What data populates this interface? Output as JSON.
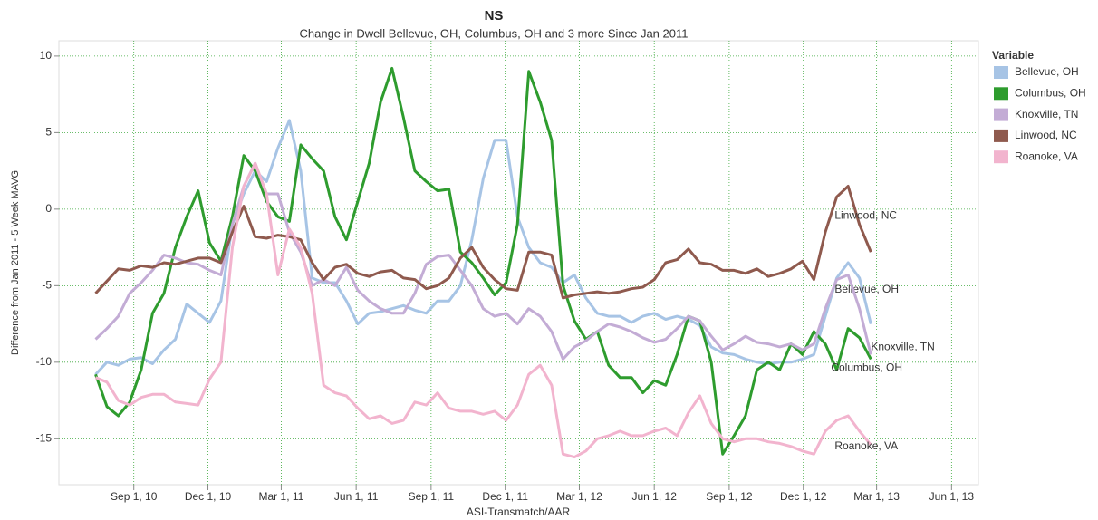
{
  "chart_data": {
    "type": "line",
    "title": "NS",
    "subtitle": "Change in Dwell Bellevue, OH, Columbus, OH and 3 more Since Jan 2011",
    "x_label": "ASI-Transmatch/AAR",
    "y_label": "Difference from Jan 2011 - 5 Week MAVG",
    "legend_title": "Variable",
    "legend": "right",
    "grid": true,
    "xlim": [
      "2010-06-01",
      "2013-07-04"
    ],
    "ylim": [
      -18,
      11
    ],
    "yticks": [
      -15,
      -10,
      -5,
      0,
      5,
      10
    ],
    "xticks": [
      {
        "value": "2010-09-01",
        "label": "Sep 1, 10"
      },
      {
        "value": "2010-12-01",
        "label": "Dec 1, 10"
      },
      {
        "value": "2011-03-01",
        "label": "Mar 1, 11"
      },
      {
        "value": "2011-06-01",
        "label": "Jun 1, 11"
      },
      {
        "value": "2011-09-01",
        "label": "Sep 1, 11"
      },
      {
        "value": "2011-12-01",
        "label": "Dec 1, 11"
      },
      {
        "value": "2012-03-01",
        "label": "Mar 1, 12"
      },
      {
        "value": "2012-06-01",
        "label": "Jun 1, 12"
      },
      {
        "value": "2012-09-01",
        "label": "Sep 1, 12"
      },
      {
        "value": "2012-12-01",
        "label": "Dec 1, 12"
      },
      {
        "value": "2013-03-01",
        "label": "Mar 1, 13"
      },
      {
        "value": "2013-06-01",
        "label": "Jun 1, 13"
      }
    ],
    "x": [
      "2010-07-16",
      "2010-07-30",
      "2010-08-13",
      "2010-08-27",
      "2010-09-10",
      "2010-09-24",
      "2010-10-08",
      "2010-10-22",
      "2010-11-05",
      "2010-11-19",
      "2010-12-03",
      "2010-12-17",
      "2010-12-31",
      "2011-01-14",
      "2011-01-28",
      "2011-02-11",
      "2011-02-25",
      "2011-03-11",
      "2011-03-25",
      "2011-04-08",
      "2011-04-22",
      "2011-05-06",
      "2011-05-20",
      "2011-06-03",
      "2011-06-17",
      "2011-07-01",
      "2011-07-15",
      "2011-07-29",
      "2011-08-12",
      "2011-08-26",
      "2011-09-09",
      "2011-09-23",
      "2011-10-07",
      "2011-10-21",
      "2011-11-04",
      "2011-11-18",
      "2011-12-02",
      "2011-12-16",
      "2011-12-30",
      "2012-01-13",
      "2012-01-27",
      "2012-02-10",
      "2012-02-24",
      "2012-03-09",
      "2012-03-23",
      "2012-04-06",
      "2012-04-20",
      "2012-05-04",
      "2012-05-18",
      "2012-06-01",
      "2012-06-15",
      "2012-06-29",
      "2012-07-13",
      "2012-07-27",
      "2012-08-10",
      "2012-08-24",
      "2012-09-07",
      "2012-09-21",
      "2012-10-05",
      "2012-10-19",
      "2012-11-02",
      "2012-11-16",
      "2012-11-30",
      "2012-12-14",
      "2012-12-28",
      "2013-01-11",
      "2013-01-25",
      "2013-02-08",
      "2013-02-22"
    ],
    "series": [
      {
        "name": "Bellevue, OH",
        "color": "#a7c4e5",
        "values": [
          -10.8,
          -10.0,
          -10.2,
          -9.8,
          -9.7,
          -10.1,
          -9.2,
          -8.5,
          -6.2,
          -6.8,
          -7.4,
          -6.0,
          -1.0,
          1.0,
          2.5,
          1.8,
          4.0,
          5.8,
          2.5,
          -4.5,
          -4.8,
          -4.8,
          -6.0,
          -7.5,
          -6.8,
          -6.7,
          -6.5,
          -6.3,
          -6.6,
          -6.8,
          -6.0,
          -6.0,
          -5.0,
          -2.0,
          2.0,
          4.5,
          4.5,
          -0.5,
          -2.5,
          -3.5,
          -3.8,
          -4.8,
          -4.3,
          -5.8,
          -6.8,
          -7.0,
          -7.0,
          -7.4,
          -7.0,
          -6.8,
          -7.2,
          -7.0,
          -7.2,
          -7.6,
          -9.0,
          -9.4,
          -9.5,
          -9.8,
          -10.0,
          -10.1,
          -10.0,
          -10.0,
          -9.8,
          -9.5,
          -7.0,
          -4.5,
          -3.5,
          -4.5,
          -7.5
        ]
      },
      {
        "name": "Columbus, OH",
        "color": "#2e9c2e",
        "values": [
          -10.8,
          -12.9,
          -13.5,
          -12.6,
          -10.5,
          -6.8,
          -5.5,
          -2.5,
          -0.5,
          1.2,
          -2.2,
          -3.4,
          -0.5,
          3.5,
          2.5,
          0.5,
          -0.5,
          -0.8,
          4.2,
          3.3,
          2.5,
          -0.5,
          -2.0,
          0.5,
          3.0,
          7.0,
          9.2,
          6.0,
          2.5,
          1.8,
          1.2,
          1.3,
          -2.8,
          -3.5,
          -4.5,
          -5.6,
          -4.8,
          -1.0,
          9.0,
          7.0,
          4.5,
          -5.0,
          -7.3,
          -8.5,
          -8.0,
          -10.2,
          -11.0,
          -11.0,
          -12.0,
          -11.2,
          -11.5,
          -9.5,
          -7.0,
          -7.3,
          -10.0,
          -16.0,
          -14.8,
          -13.5,
          -10.5,
          -10.0,
          -10.5,
          -8.8,
          -9.5,
          -8.0,
          -8.8,
          -10.5,
          -7.8,
          -8.4,
          -9.8
        ]
      },
      {
        "name": "Knoxville, TN",
        "color": "#c3acd5",
        "values": [
          -8.5,
          -7.8,
          -7.0,
          -5.5,
          -4.8,
          -4.0,
          -3.0,
          -3.2,
          -3.5,
          -3.6,
          -4.0,
          -4.3,
          -1.0,
          1.5,
          3.0,
          1.0,
          1.0,
          -1.5,
          -2.8,
          -5.0,
          -4.6,
          -5.0,
          -3.8,
          -5.3,
          -6.0,
          -6.5,
          -6.8,
          -6.8,
          -5.5,
          -3.6,
          -3.1,
          -3.0,
          -4.0,
          -5.0,
          -6.5,
          -7.0,
          -6.8,
          -7.5,
          -6.5,
          -7.0,
          -8.0,
          -9.8,
          -9.0,
          -8.6,
          -8.0,
          -7.5,
          -7.7,
          -8.0,
          -8.4,
          -8.7,
          -8.5,
          -7.8,
          -7.0,
          -7.3,
          -8.3,
          -9.2,
          -8.8,
          -8.3,
          -8.7,
          -8.8,
          -9.0,
          -8.8,
          -9.2,
          -8.8,
          -6.5,
          -4.6,
          -4.3,
          -6.5,
          -9.5
        ]
      },
      {
        "name": "Linwood, NC",
        "color": "#8f5a4e",
        "values": [
          -5.5,
          -4.7,
          -3.9,
          -4.0,
          -3.7,
          -3.8,
          -3.5,
          -3.6,
          -3.4,
          -3.2,
          -3.2,
          -3.5,
          -1.5,
          0.2,
          -1.8,
          -1.9,
          -1.7,
          -1.8,
          -2.0,
          -3.5,
          -4.6,
          -3.8,
          -3.6,
          -4.2,
          -4.4,
          -4.1,
          -4.0,
          -4.5,
          -4.6,
          -5.2,
          -5.0,
          -4.5,
          -3.2,
          -2.5,
          -3.8,
          -4.6,
          -5.2,
          -5.3,
          -2.8,
          -2.8,
          -3.0,
          -5.8,
          -5.6,
          -5.5,
          -5.4,
          -5.5,
          -5.4,
          -5.2,
          -5.1,
          -4.6,
          -3.5,
          -3.3,
          -2.6,
          -3.5,
          -3.6,
          -4.0,
          -4.0,
          -4.2,
          -3.9,
          -4.4,
          -4.2,
          -3.9,
          -3.4,
          -4.6,
          -1.5,
          0.8,
          1.5,
          -1.0,
          -2.8
        ]
      },
      {
        "name": "Roanoke, VA",
        "color": "#f2b4ce",
        "values": [
          -11.0,
          -11.3,
          -12.5,
          -12.8,
          -12.3,
          -12.1,
          -12.1,
          -12.6,
          -12.7,
          -12.8,
          -11.1,
          -10.0,
          -2.5,
          1.5,
          3.0,
          1.0,
          -4.3,
          -1.3,
          -2.5,
          -5.5,
          -11.5,
          -12.0,
          -12.2,
          -13.0,
          -13.7,
          -13.5,
          -14.0,
          -13.8,
          -12.6,
          -12.8,
          -12.0,
          -13.0,
          -13.2,
          -13.2,
          -13.4,
          -13.2,
          -13.8,
          -12.8,
          -10.8,
          -10.2,
          -11.5,
          -16.0,
          -16.2,
          -15.8,
          -15.0,
          -14.8,
          -14.5,
          -14.8,
          -14.8,
          -14.5,
          -14.3,
          -14.8,
          -13.3,
          -12.2,
          -14.0,
          -15.0,
          -15.2,
          -15.0,
          -15.0,
          -15.2,
          -15.3,
          -15.5,
          -15.8,
          -16.0,
          -14.5,
          -13.8,
          -13.5,
          -14.5,
          -15.4
        ]
      }
    ]
  }
}
